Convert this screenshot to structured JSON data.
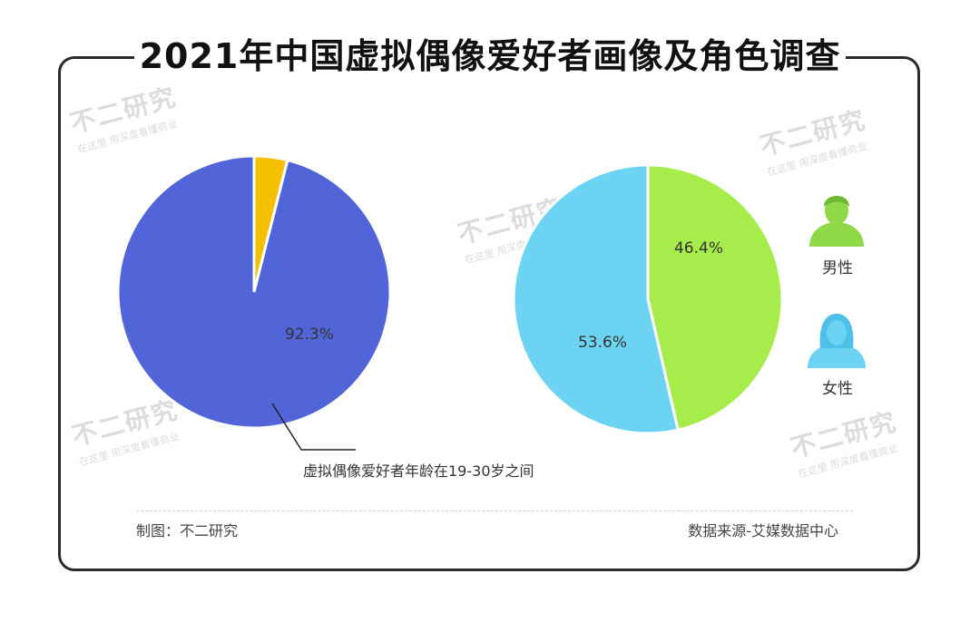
{
  "title": "2021年中国虚拟偶像爱好者画像及角色调查",
  "watermark": {
    "main": "不二研究",
    "sub": "在这里 用深度看懂商业"
  },
  "chart_data": [
    {
      "type": "pie",
      "slices": [
        {
          "label": "虚拟偶像爱好者年龄在19-30岁之间",
          "value": 92.3,
          "color": "#5165d8",
          "display": "92.3%"
        },
        {
          "label": "",
          "value": 3.8,
          "color": "#f5c000",
          "display": ""
        }
      ],
      "annotation": "虚拟偶像爱好者年龄在19-30岁之间"
    },
    {
      "type": "pie",
      "slices": [
        {
          "label": "男性",
          "value": 46.4,
          "color": "#a6ec4a",
          "display": "46.4%"
        },
        {
          "label": "女性",
          "value": 53.6,
          "color": "#6dd3f2",
          "display": "53.6%"
        }
      ],
      "legend": [
        {
          "label": "男性",
          "icon": "male-user-icon",
          "color": "#8fd848"
        },
        {
          "label": "女性",
          "icon": "female-user-icon",
          "color": "#6dd3f2"
        }
      ]
    }
  ],
  "footer": {
    "left": "制图：不二研究",
    "right": "数据来源-艾媒数据中心"
  }
}
